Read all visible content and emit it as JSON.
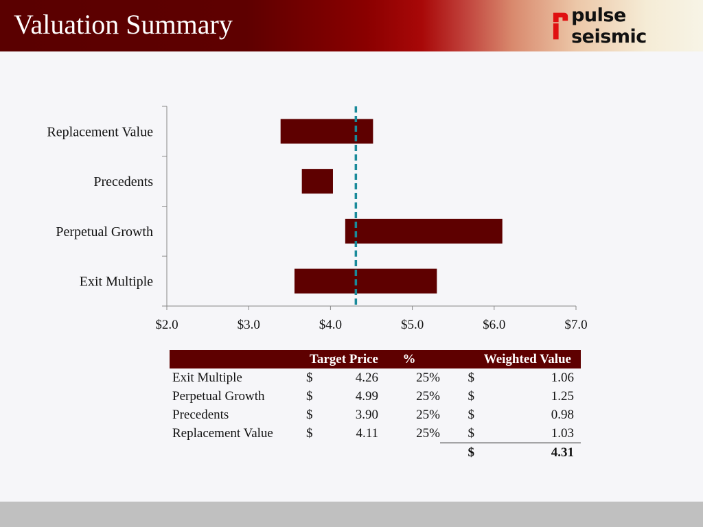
{
  "header": {
    "title": "Valuation Summary",
    "logo_text": "pulse seismic"
  },
  "colors": {
    "bar": "#5e0000",
    "target_line": "#1a8a9a",
    "header": "#5a0000",
    "footer": "#c0c0c0"
  },
  "chart_data": {
    "type": "bar",
    "orientation": "horizontal-floating",
    "categories": [
      "Replacement Value",
      "Precedents",
      "Perpetual Growth",
      "Exit Multiple"
    ],
    "ranges": [
      [
        3.39,
        4.52
      ],
      [
        3.65,
        4.03
      ],
      [
        4.18,
        6.1
      ],
      [
        3.56,
        5.3
      ]
    ],
    "reference_line": {
      "value": 4.31,
      "style": "dashed"
    },
    "xlim": [
      2.0,
      7.0
    ],
    "xticks": [
      2.0,
      3.0,
      4.0,
      5.0,
      6.0,
      7.0
    ],
    "xtick_labels": [
      "$2.0",
      "$3.0",
      "$4.0",
      "$5.0",
      "$6.0",
      "$7.0"
    ],
    "title": "",
    "xlabel": "",
    "ylabel": ""
  },
  "table": {
    "headers": [
      "",
      "Target Price",
      "%",
      "Weighted Value"
    ],
    "rows": [
      {
        "label": "Exit Multiple",
        "d1": "$",
        "price": "4.26",
        "pct": "25%",
        "d2": "$",
        "wv": "1.06"
      },
      {
        "label": "Perpetual Growth",
        "d1": "$",
        "price": "4.99",
        "pct": "25%",
        "d2": "$",
        "wv": "1.25"
      },
      {
        "label": "Precedents",
        "d1": "$",
        "price": "3.90",
        "pct": "25%",
        "d2": "$",
        "wv": "0.98"
      },
      {
        "label": "Replacement Value",
        "d1": "$",
        "price": "4.11",
        "pct": "25%",
        "d2": "$",
        "wv": "1.03"
      }
    ],
    "total": {
      "d2": "$",
      "wv": "4.31"
    }
  }
}
